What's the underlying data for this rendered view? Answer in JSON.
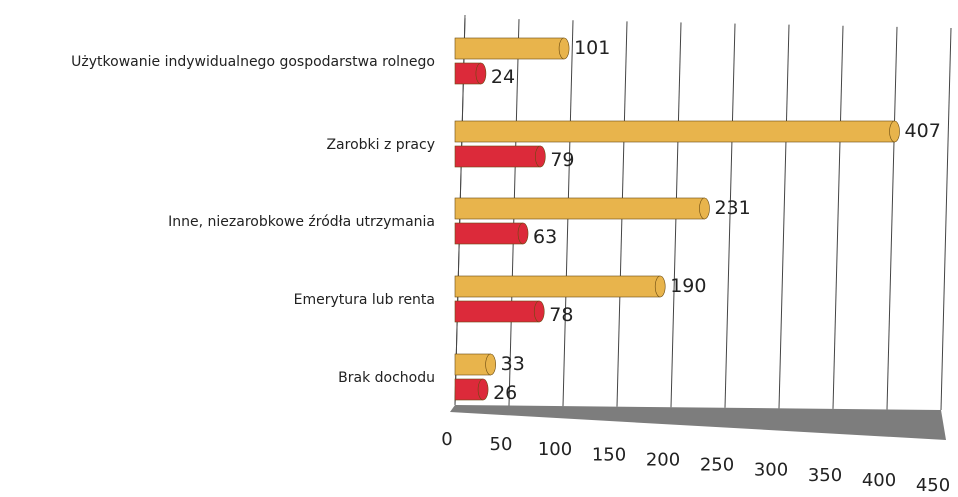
{
  "chart_data": {
    "type": "bar",
    "orientation": "horizontal",
    "categories": [
      "Użytkowanie indywidualnego gospodarstwa rolnego",
      "Zarobki z pracy",
      "Inne, niezarobkowe źródła utrzymania",
      "Emerytura lub renta",
      "Brak dochodu"
    ],
    "series": [
      {
        "color": "#e8b44c",
        "values": [
          101,
          407,
          231,
          190,
          33
        ]
      },
      {
        "color": "#dc2a3a",
        "values": [
          24,
          79,
          63,
          78,
          26
        ]
      }
    ],
    "xlim": [
      0,
      450
    ],
    "xticks": [
      0,
      50,
      100,
      150,
      200,
      250,
      300,
      350,
      400,
      450
    ],
    "grid": true
  }
}
